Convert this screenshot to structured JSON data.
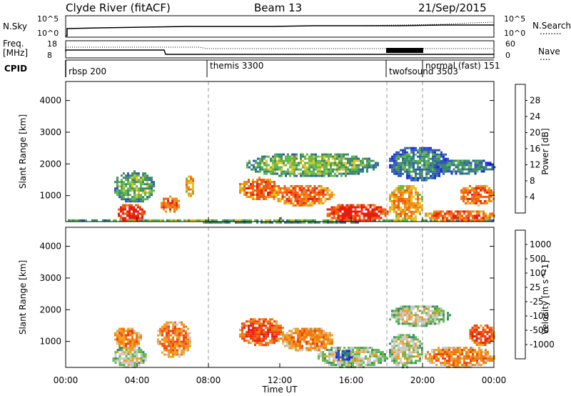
{
  "header": {
    "station": "Clyde River (fitACF)",
    "beam": "Beam 13",
    "date": "21/Sep/2015"
  },
  "nsky_panel": {
    "left_label": "N.Sky",
    "left_ticks": [
      "10^5",
      "10^0"
    ],
    "right_ticks": [
      "10^5",
      "10^0"
    ],
    "right_label": "N.Search",
    "right_legend_line": "........"
  },
  "freq_panel": {
    "left_label_top": "Freq.",
    "left_label_bottom": "[MHz]",
    "left_ticks": [
      "18",
      "8"
    ],
    "right_ticks": [
      "60",
      "0"
    ],
    "right_label": "Nave",
    "right_legend_line": "...."
  },
  "cpid_panel": {
    "label": "CPID",
    "modes": [
      {
        "name": "rbsp 200",
        "start_hour": 0
      },
      {
        "name": "themis 3300",
        "start_hour": 8
      },
      {
        "name": "twofsound 3503",
        "start_hour": 18
      },
      {
        "name": "normal (fast) 151",
        "start_hour": 20
      }
    ]
  },
  "time_axis": {
    "ticks": [
      "00:00",
      "04:00",
      "08:00",
      "12:00",
      "16:00",
      "20:00",
      "00:00"
    ],
    "tick_hours": [
      0,
      4,
      8,
      12,
      16,
      20,
      24
    ],
    "xlabel": "Time UT"
  },
  "chart_data": [
    {
      "type": "heatmap",
      "name": "power-panel",
      "ylabel": "Slant Range [km]",
      "yticks": [
        "1000",
        "2000",
        "3000",
        "4000"
      ],
      "ytick_values": [
        1000,
        2000,
        3000,
        4000
      ],
      "ylim": [
        180,
        4600
      ],
      "xlim": [
        0,
        24
      ],
      "colorbar": {
        "label": "Power [dB]",
        "ticks": [
          "4",
          "8",
          "12",
          "16",
          "20",
          "24",
          "28"
        ],
        "tick_values": [
          4,
          8,
          12,
          16,
          20,
          24,
          28
        ],
        "range": [
          0,
          32
        ],
        "colors": [
          "#1c28e6",
          "#2e58b8",
          "#3a8a6a",
          "#5fb84a",
          "#e6c21e",
          "#f08a10",
          "#f25a10",
          "#e61c10"
        ]
      },
      "regions": [
        {
          "t0": 0.0,
          "t1": 24.0,
          "r0": 180,
          "r1": 320,
          "level": 3
        },
        {
          "t0": 2.8,
          "t1": 4.4,
          "r0": 200,
          "r1": 800,
          "level": 7
        },
        {
          "t0": 2.6,
          "t1": 5.0,
          "r0": 800,
          "r1": 1800,
          "level": 3
        },
        {
          "t0": 5.2,
          "t1": 6.4,
          "r0": 500,
          "r1": 1000,
          "level": 6
        },
        {
          "t0": 6.6,
          "t1": 7.2,
          "r0": 1000,
          "r1": 1700,
          "level": 5
        },
        {
          "t0": 9.6,
          "t1": 12.0,
          "r0": 900,
          "r1": 1600,
          "level": 6
        },
        {
          "t0": 11.5,
          "t1": 15.0,
          "r0": 700,
          "r1": 1400,
          "level": 6
        },
        {
          "t0": 14.5,
          "t1": 18.0,
          "r0": 200,
          "r1": 800,
          "level": 7
        },
        {
          "t0": 10.0,
          "t1": 17.5,
          "r0": 1600,
          "r1": 2400,
          "level": 3
        },
        {
          "t0": 18.0,
          "t1": 20.0,
          "r0": 200,
          "r1": 1400,
          "level": 5
        },
        {
          "t0": 18.0,
          "t1": 21.5,
          "r0": 1500,
          "r1": 2600,
          "level": 2
        },
        {
          "t0": 20.0,
          "t1": 24.0,
          "r0": 200,
          "r1": 600,
          "level": 6
        },
        {
          "t0": 22.0,
          "t1": 24.0,
          "r0": 700,
          "r1": 1400,
          "level": 6
        },
        {
          "t0": 20.5,
          "t1": 24.0,
          "r0": 1700,
          "r1": 2200,
          "level": 2
        }
      ]
    },
    {
      "type": "heatmap",
      "name": "velocity-panel",
      "ylabel": "Slant Range [km]",
      "yticks": [
        "1000",
        "2000",
        "3000",
        "4000"
      ],
      "ytick_values": [
        1000,
        2000,
        3000,
        4000
      ],
      "ylim": [
        180,
        4600
      ],
      "xlim": [
        0,
        24
      ],
      "colorbar": {
        "label": "Velocity [m s^-1]",
        "ticks": [
          "1000",
          "500",
          "100",
          "25",
          "-25",
          "-100",
          "-500",
          "-1000"
        ],
        "tick_values": [
          1000,
          500,
          100,
          25,
          -25,
          -100,
          -500,
          -1000
        ],
        "colors": [
          "#1c28e6",
          "#2e58b8",
          "#3a8a6a",
          "#5fb84a",
          "#c8c8c8",
          "#f0a020",
          "#f07810",
          "#f04010",
          "#e61c10"
        ]
      },
      "regions": [
        {
          "t0": 2.5,
          "t1": 4.5,
          "r0": 200,
          "r1": 900,
          "level": 4
        },
        {
          "t0": 2.6,
          "t1": 4.2,
          "r0": 800,
          "r1": 1500,
          "level": 6
        },
        {
          "t0": 5.0,
          "t1": 7.0,
          "r0": 500,
          "r1": 1700,
          "level": 6
        },
        {
          "t0": 9.6,
          "t1": 12.2,
          "r0": 900,
          "r1": 1800,
          "level": 7
        },
        {
          "t0": 12.0,
          "t1": 15.0,
          "r0": 700,
          "r1": 1500,
          "level": 6
        },
        {
          "t0": 14.0,
          "t1": 18.0,
          "r0": 200,
          "r1": 900,
          "level": 4
        },
        {
          "t0": 15.0,
          "t1": 16.0,
          "r0": 400,
          "r1": 800,
          "level": 1
        },
        {
          "t0": 18.0,
          "t1": 21.5,
          "r0": 1500,
          "r1": 2200,
          "level": 4
        },
        {
          "t0": 18.0,
          "t1": 20.0,
          "r0": 200,
          "r1": 1300,
          "level": 4
        },
        {
          "t0": 20.0,
          "t1": 24.0,
          "r0": 200,
          "r1": 900,
          "level": 6
        },
        {
          "t0": 22.5,
          "t1": 24.0,
          "r0": 900,
          "r1": 1600,
          "level": 7
        }
      ]
    }
  ]
}
